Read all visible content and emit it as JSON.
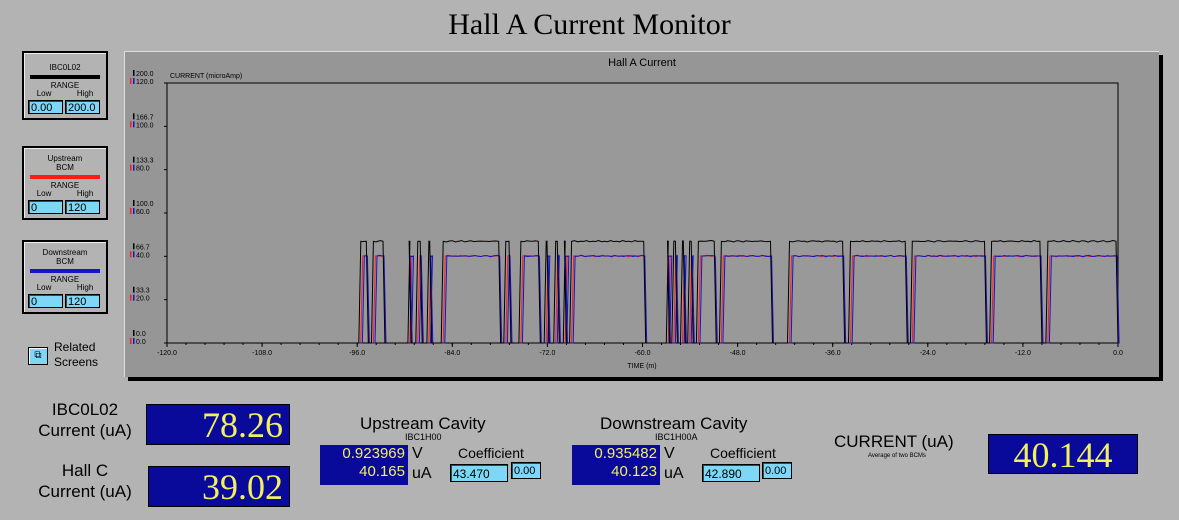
{
  "title": "Hall A Current Monitor",
  "legends": [
    {
      "name": "IBC0L02",
      "range_label": "RANGE",
      "low_label": "Low",
      "high_label": "High",
      "low": "0.00",
      "high": "200.0",
      "color": "#000000"
    },
    {
      "name": "Upstream\nBCM",
      "range_label": "RANGE",
      "low_label": "Low",
      "high_label": "High",
      "low": "0",
      "high": "120",
      "color": "#ff1a1a"
    },
    {
      "name": "Downstream\nBCM",
      "range_label": "RANGE",
      "low_label": "Low",
      "high_label": "High",
      "low": "0",
      "high": "120",
      "color": "#1414c8"
    }
  ],
  "related": {
    "icon": "windows-icon",
    "label": "Related\nScreens"
  },
  "chart_data": {
    "type": "line",
    "title": "Hall A Current",
    "ylabel": "CURRENT (microAmp)",
    "xlabel": "TIME (m)",
    "xlim": [
      -120,
      0
    ],
    "x_ticks": [
      "-120.0",
      "-108.0",
      "-96.0",
      "-84.0",
      "-72.0",
      "-60.0",
      "-48.0",
      "-36.0",
      "-24.0",
      "-12.0",
      "0.0"
    ],
    "y_ticks_black": [
      "0.0",
      "33.3",
      "66.7",
      "100.0",
      "133.3",
      "166.7",
      "200.0"
    ],
    "y_ticks_color": [
      "0.0",
      "20.0",
      "40.0",
      "60.0",
      "80.0",
      "100.0",
      "120.0"
    ],
    "grid": false,
    "beam_on_level_black": 78.26,
    "beam_on_level_color": 40.14,
    "beam_on_intervals": [
      [
        -95.8,
        -94.6
      ],
      [
        -94.2,
        -92.5
      ],
      [
        -89.6,
        -89.2
      ],
      [
        -88.6,
        -87.8
      ],
      [
        -87.2,
        -86.6
      ],
      [
        -85.4,
        -77.9
      ],
      [
        -77.5,
        -76.6
      ],
      [
        -75.6,
        -72.9
      ],
      [
        -72.4,
        -71.8
      ],
      [
        -71.2,
        -70.5
      ],
      [
        -70.0,
        -69.6
      ],
      [
        -69.2,
        -59.6
      ],
      [
        -57.0,
        -56.6
      ],
      [
        -56.3,
        -55.6
      ],
      [
        -55.2,
        -54.6
      ],
      [
        -54.3,
        -53.6
      ],
      [
        -53.2,
        -50.7
      ],
      [
        -50.3,
        -43.6
      ],
      [
        -41.7,
        -34.5
      ],
      [
        -34.0,
        -26.6
      ],
      [
        -26.2,
        -16.6
      ],
      [
        -16.2,
        -9.6
      ],
      [
        -9.1,
        0.0
      ]
    ]
  },
  "readouts": {
    "ibc_label": "IBC0L02\nCurrent (uA)",
    "ibc_value": "78.26",
    "hallc_label": "Hall C\nCurrent (uA)",
    "hallc_value": "39.02",
    "upstream": {
      "title": "Upstream Cavity",
      "sub": "IBC1H00",
      "volts": "0.923969",
      "volts_unit": "V",
      "amps": "40.165",
      "amps_unit": "uA",
      "coef_label": "Coefficient",
      "coef": "43.470",
      "offset": "0.00"
    },
    "downstream": {
      "title": "Downstream Cavity",
      "sub": "IBC1H00A",
      "volts": "0.935482",
      "volts_unit": "V",
      "amps": "40.123",
      "amps_unit": "uA",
      "coef_label": "Coefficient",
      "coef": "42.890",
      "offset": "0.00"
    },
    "current_label": "CURRENT (uA)",
    "current_sub": "Average of two BCMs",
    "current_value": "40.144"
  }
}
